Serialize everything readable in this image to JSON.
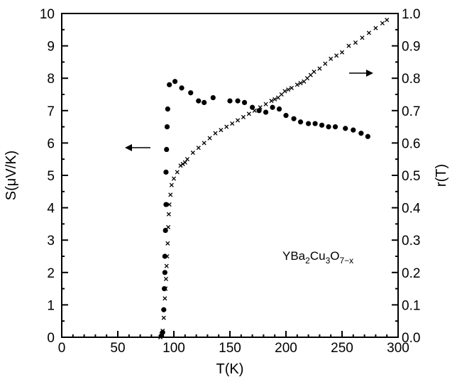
{
  "chart_data": {
    "type": "scatter",
    "xlabel": "T(K)",
    "ylabel_left": "S(μV/K)",
    "ylabel_right": "r(T)",
    "xlim": [
      0,
      300
    ],
    "ylim_left": [
      0,
      10
    ],
    "ylim_right": [
      0,
      1.0
    ],
    "x_ticks": [
      "0",
      "50",
      "100",
      "150",
      "200",
      "250",
      "300"
    ],
    "y_left_ticks": [
      "0",
      "1",
      "2",
      "3",
      "4",
      "5",
      "6",
      "7",
      "8",
      "9",
      "10"
    ],
    "y_right_ticks": [
      "0.0",
      "0.1",
      "0.2",
      "0.3",
      "0.4",
      "0.5",
      "0.6",
      "0.7",
      "0.8",
      "0.9",
      "1.0"
    ],
    "annotation": {
      "base": "YBa",
      "sub1": "2",
      "mid1": "Cu",
      "sub2": "3",
      "mid2": "O",
      "sub3": "7−x"
    },
    "grid": false,
    "series": [
      {
        "axis": "left",
        "marker": "dot",
        "points": [
          [
            89,
            0.05
          ],
          [
            90,
            0.15
          ],
          [
            91,
            0.85
          ],
          [
            91.5,
            1.5
          ],
          [
            92,
            2.0
          ],
          [
            92,
            2.5
          ],
          [
            92.5,
            3.3
          ],
          [
            93,
            4.1
          ],
          [
            93,
            5.1
          ],
          [
            93.5,
            5.8
          ],
          [
            94,
            6.5
          ],
          [
            94.5,
            7.05
          ],
          [
            96,
            7.8
          ],
          [
            101,
            7.9
          ],
          [
            107,
            7.7
          ],
          [
            115,
            7.55
          ],
          [
            122,
            7.3
          ],
          [
            127,
            7.25
          ],
          [
            135,
            7.4
          ],
          [
            150,
            7.3
          ],
          [
            157,
            7.3
          ],
          [
            163,
            7.25
          ],
          [
            170,
            7.1
          ],
          [
            176,
            7.0
          ],
          [
            182,
            6.95
          ],
          [
            188,
            7.1
          ],
          [
            194,
            7.05
          ],
          [
            200,
            6.85
          ],
          [
            207,
            6.75
          ],
          [
            213,
            6.65
          ],
          [
            220,
            6.6
          ],
          [
            226,
            6.6
          ],
          [
            232,
            6.55
          ],
          [
            238,
            6.5
          ],
          [
            244,
            6.5
          ],
          [
            253,
            6.45
          ],
          [
            260,
            6.4
          ],
          [
            267,
            6.3
          ],
          [
            273,
            6.2
          ]
        ]
      },
      {
        "axis": "right",
        "marker": "x",
        "points": [
          [
            88,
            0.0
          ],
          [
            89,
            0.01
          ],
          [
            90,
            0.02
          ],
          [
            91,
            0.06
          ],
          [
            92,
            0.12
          ],
          [
            92.5,
            0.15
          ],
          [
            93,
            0.18
          ],
          [
            93.5,
            0.22
          ],
          [
            94,
            0.25
          ],
          [
            94.5,
            0.29
          ],
          [
            95,
            0.34
          ],
          [
            95.5,
            0.38
          ],
          [
            96,
            0.41
          ],
          [
            97,
            0.44
          ],
          [
            98,
            0.47
          ],
          [
            100,
            0.49
          ],
          [
            103,
            0.51
          ],
          [
            106,
            0.53
          ],
          [
            108,
            0.535
          ],
          [
            110,
            0.54
          ],
          [
            112,
            0.55
          ],
          [
            117,
            0.57
          ],
          [
            122,
            0.585
          ],
          [
            127,
            0.6
          ],
          [
            132,
            0.615
          ],
          [
            137,
            0.63
          ],
          [
            142,
            0.64
          ],
          [
            147,
            0.65
          ],
          [
            152,
            0.66
          ],
          [
            157,
            0.67
          ],
          [
            162,
            0.68
          ],
          [
            167,
            0.69
          ],
          [
            172,
            0.7
          ],
          [
            177,
            0.71
          ],
          [
            182,
            0.72
          ],
          [
            187,
            0.73
          ],
          [
            190,
            0.735
          ],
          [
            193,
            0.74
          ],
          [
            196,
            0.75
          ],
          [
            199,
            0.76
          ],
          [
            202,
            0.765
          ],
          [
            205,
            0.77
          ],
          [
            210,
            0.78
          ],
          [
            213,
            0.785
          ],
          [
            216,
            0.79
          ],
          [
            219,
            0.8
          ],
          [
            222,
            0.81
          ],
          [
            225,
            0.82
          ],
          [
            230,
            0.83
          ],
          [
            235,
            0.845
          ],
          [
            240,
            0.86
          ],
          [
            245,
            0.87
          ],
          [
            250,
            0.88
          ],
          [
            256,
            0.9
          ],
          [
            262,
            0.91
          ],
          [
            268,
            0.925
          ],
          [
            274,
            0.94
          ],
          [
            280,
            0.955
          ],
          [
            286,
            0.97
          ],
          [
            290,
            0.98
          ]
        ]
      }
    ]
  }
}
